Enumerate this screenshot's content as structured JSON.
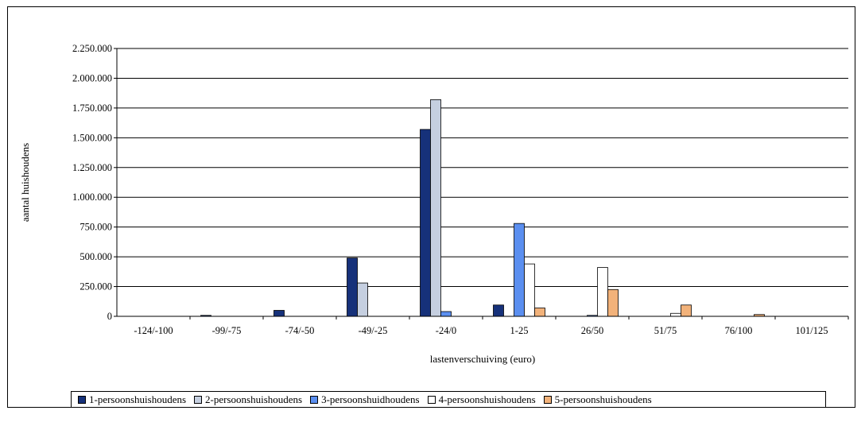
{
  "chart_data": {
    "type": "bar",
    "title": "",
    "xlabel": "lastenverschuiving (euro)",
    "ylabel": "aantal huishoudens",
    "ylim": [
      0,
      2250000
    ],
    "yticks": [
      "0",
      "250.000",
      "500.000",
      "750.000",
      "1.000.000",
      "1.250.000",
      "1.500.000",
      "1.750.000",
      "2.000.000",
      "2.250.000"
    ],
    "ytick_values": [
      0,
      250000,
      500000,
      750000,
      1000000,
      1250000,
      1500000,
      1750000,
      2000000,
      2250000
    ],
    "grid": true,
    "legend_position": "bottom",
    "categories": [
      "-124/-100",
      "-99/-75",
      "-74/-50",
      "-49/-25",
      "-24/0",
      "1-25",
      "26/50",
      "51/75",
      "76/100",
      "101/125"
    ],
    "series": [
      {
        "name": "1-persoonshuishoudens",
        "color": "#16317a",
        "values": [
          0,
          8000,
          50000,
          490000,
          1570000,
          95000,
          0,
          0,
          0,
          0
        ]
      },
      {
        "name": "2-persoonshuishoudens",
        "color": "#c5cfe0",
        "values": [
          0,
          0,
          0,
          280000,
          1820000,
          0,
          0,
          0,
          0,
          0
        ]
      },
      {
        "name": "3-persoonshuidhoudens",
        "color": "#5b8ff0",
        "values": [
          0,
          0,
          0,
          0,
          40000,
          780000,
          8000,
          0,
          0,
          0
        ]
      },
      {
        "name": "4-persoonshuishoudens",
        "color": "#ffffff",
        "values": [
          0,
          0,
          0,
          0,
          0,
          440000,
          410000,
          25000,
          0,
          0
        ]
      },
      {
        "name": "5-persoonshuishoudens",
        "color": "#f2b27a",
        "values": [
          0,
          0,
          0,
          0,
          0,
          70000,
          225000,
          95000,
          15000,
          0
        ]
      }
    ]
  }
}
